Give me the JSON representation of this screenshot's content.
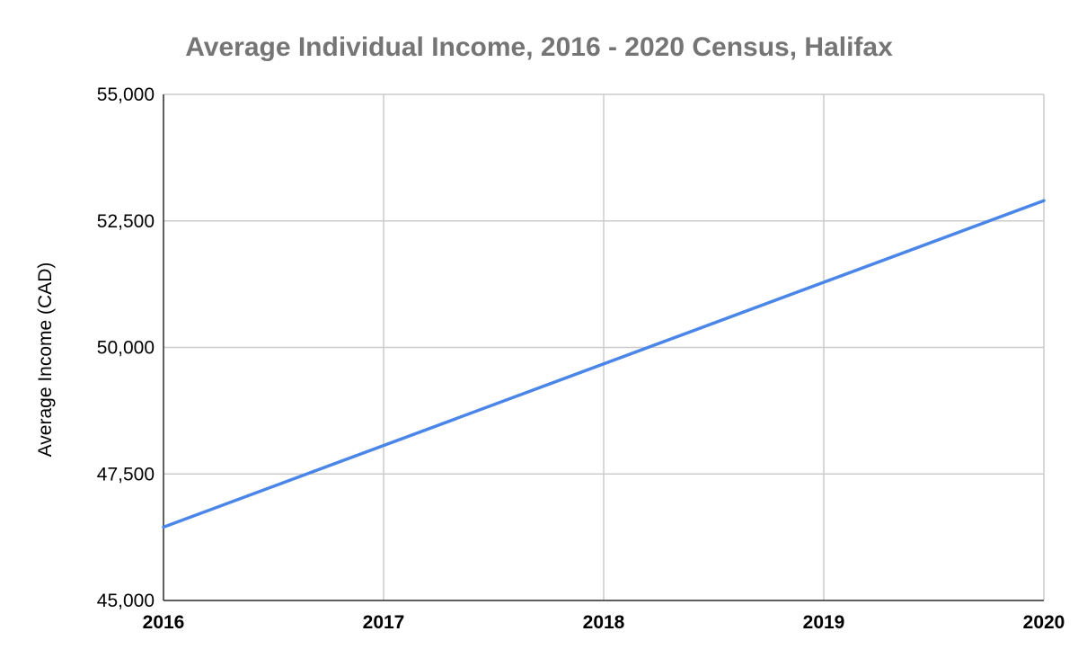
{
  "chart_data": {
    "type": "line",
    "title": "Average Individual Income, 2016 - 2020 Census, Halifax",
    "xlabel": "",
    "ylabel": "Average Income (CAD)",
    "x": [
      2016,
      2020
    ],
    "x_ticks": [
      "2016",
      "2017",
      "2018",
      "2019",
      "2020"
    ],
    "y_ticks": [
      "45,000",
      "47,500",
      "50,000",
      "52,500",
      "55,000"
    ],
    "ylim": [
      45000,
      55000
    ],
    "grid": true,
    "legend": "none",
    "series": [
      {
        "values": [
          46450,
          52900
        ],
        "color": "#4a86e8"
      }
    ]
  }
}
